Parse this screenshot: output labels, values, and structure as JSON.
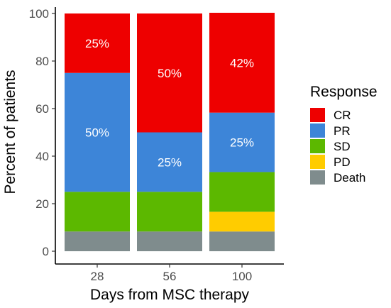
{
  "chart_data": {
    "type": "bar",
    "stacked": true,
    "title": "",
    "xlabel": "Days from MSC therapy",
    "ylabel": "Percent of patients",
    "ylim": [
      0,
      100
    ],
    "yticks": [
      0,
      20,
      40,
      60,
      80,
      100
    ],
    "categories": [
      "28",
      "56",
      "100"
    ],
    "legend_title": "Response",
    "legend_position": "right",
    "grid": false,
    "series": [
      {
        "name": "Death",
        "color": "#7f8c8d",
        "values": [
          8.3,
          8.3,
          8.3
        ]
      },
      {
        "name": "PD",
        "color": "#ffcc00",
        "values": [
          0,
          0,
          8.3
        ]
      },
      {
        "name": "SD",
        "color": "#5cb800",
        "values": [
          16.7,
          16.7,
          16.7
        ]
      },
      {
        "name": "PR",
        "color": "#3d85d8",
        "values": [
          50,
          25,
          25
        ]
      },
      {
        "name": "CR",
        "color": "#ee0000",
        "values": [
          25,
          50,
          42
        ]
      }
    ],
    "data_labels": [
      {
        "category": "28",
        "series": "CR",
        "text": "25%"
      },
      {
        "category": "28",
        "series": "PR",
        "text": "50%"
      },
      {
        "category": "56",
        "series": "CR",
        "text": "50%"
      },
      {
        "category": "56",
        "series": "PR",
        "text": "25%"
      },
      {
        "category": "100",
        "series": "CR",
        "text": "42%"
      },
      {
        "category": "100",
        "series": "PR",
        "text": "25%"
      }
    ],
    "legend_order": [
      "CR",
      "PR",
      "SD",
      "PD",
      "Death"
    ]
  }
}
